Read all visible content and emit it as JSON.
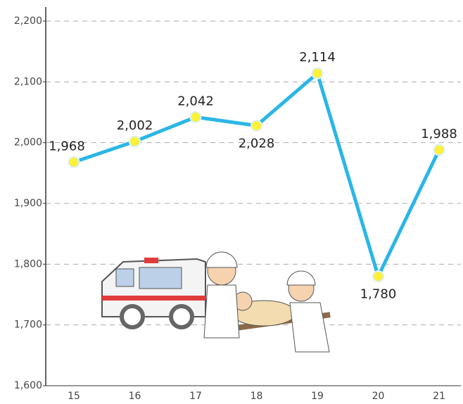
{
  "chart_data": {
    "type": "line",
    "categories": [
      "15",
      "16",
      "17",
      "18",
      "19",
      "20",
      "21"
    ],
    "series": [
      {
        "color": "#2bb6e6",
        "marker_color": "#fff03a",
        "values": [
          1968,
          2002,
          2042,
          2028,
          2114,
          1780,
          1988
        ],
        "value_labels": [
          "1,968",
          "2,002",
          "2,042",
          "2,028",
          "2,114",
          "1,780",
          "1,988"
        ]
      }
    ],
    "ylim": [
      1600,
      2200
    ],
    "yticks": [
      {
        "value": 1600,
        "label": "1,600"
      },
      {
        "value": 1700,
        "label": "1,700"
      },
      {
        "value": 1800,
        "label": "1,800"
      },
      {
        "value": 1900,
        "label": "1,900"
      },
      {
        "value": 2000,
        "label": "2,000"
      },
      {
        "value": 2100,
        "label": "2,100"
      },
      {
        "value": 2200,
        "label": "2,200"
      }
    ],
    "grid": true
  }
}
